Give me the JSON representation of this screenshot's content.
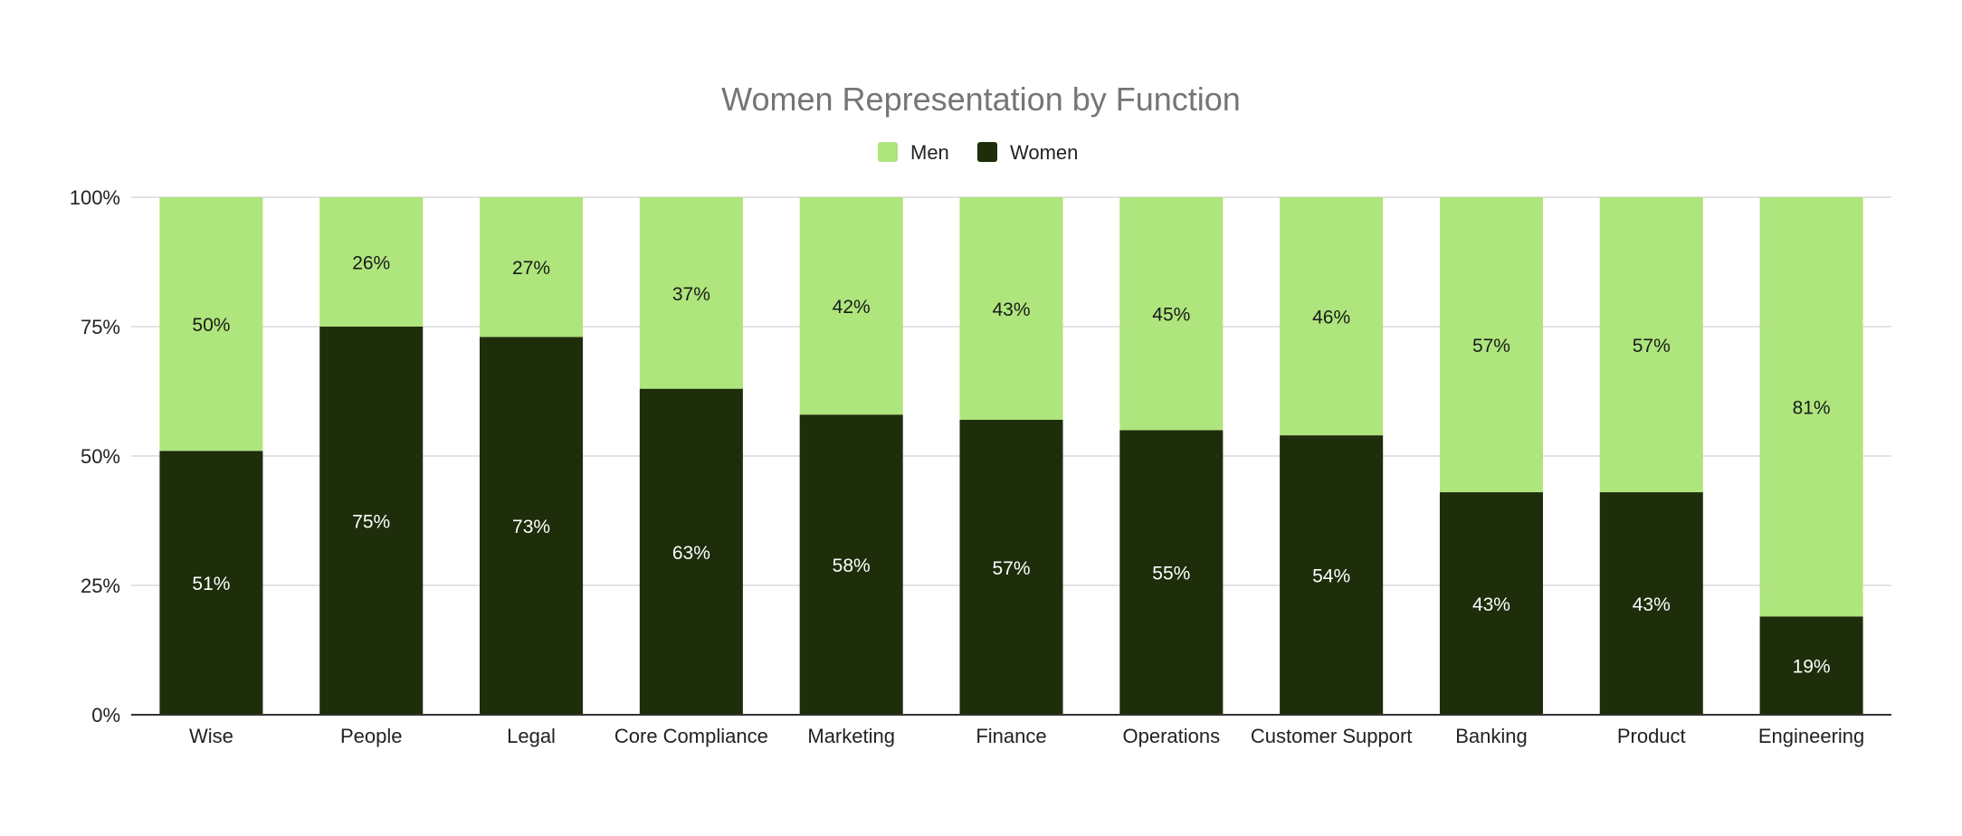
{
  "chart_data": {
    "type": "bar",
    "stacked": true,
    "title": "Women Representation by Function",
    "xlabel": "",
    "ylabel": "",
    "ylim": [
      0,
      100
    ],
    "y_ticks": [
      "0%",
      "25%",
      "50%",
      "75%",
      "100%"
    ],
    "y_tick_values": [
      0,
      25,
      50,
      75,
      100
    ],
    "grid": true,
    "legend": {
      "placement": "top-center",
      "entries": [
        "Men",
        "Women"
      ]
    },
    "categories": [
      "Wise",
      "People",
      "Legal",
      "Core Compliance",
      "Marketing",
      "Finance",
      "Operations",
      "Customer Support",
      "Banking",
      "Product",
      "Engineering"
    ],
    "series": [
      {
        "name": "Women",
        "color": "#1e2d0a",
        "label_color": "#ffffff",
        "values": [
          51,
          75,
          73,
          63,
          58,
          57,
          55,
          54,
          43,
          43,
          19
        ],
        "labels": [
          "51%",
          "75%",
          "73%",
          "63%",
          "58%",
          "57%",
          "55%",
          "54%",
          "43%",
          "43%",
          "19%"
        ]
      },
      {
        "name": "Men",
        "color": "#aee57c",
        "label_color": "#1a1a1a",
        "values": [
          50,
          26,
          27,
          37,
          42,
          43,
          45,
          46,
          57,
          57,
          81
        ],
        "labels": [
          "50%",
          "26%",
          "27%",
          "37%",
          "42%",
          "43%",
          "45%",
          "46%",
          "57%",
          "57%",
          "81%"
        ]
      }
    ]
  }
}
